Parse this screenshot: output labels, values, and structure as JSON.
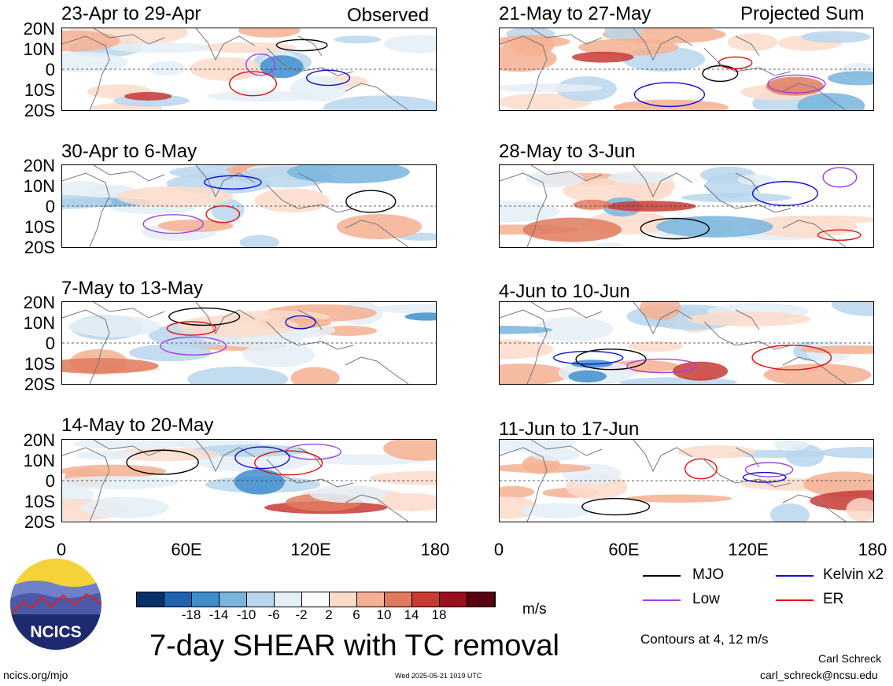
{
  "header": {
    "left_tag": "Observed",
    "right_tag": "Projected Sum"
  },
  "panels": [
    {
      "title": "23-Apr to 29-Apr"
    },
    {
      "title": "21-May to 27-May"
    },
    {
      "title": "30-Apr to 6-May"
    },
    {
      "title": "28-May to 3-Jun"
    },
    {
      "title": "7-May to 13-May"
    },
    {
      "title": "4-Jun to 10-Jun"
    },
    {
      "title": "14-May to 20-May"
    },
    {
      "title": "11-Jun to 17-Jun"
    }
  ],
  "axes": {
    "lat_labels": [
      "20N",
      "10N",
      "0",
      "10S",
      "20S"
    ],
    "lon_labels": [
      "0",
      "60E",
      "120E",
      "180"
    ]
  },
  "legend": {
    "mjo": {
      "label": "MJO",
      "color": "#000000"
    },
    "kelvin": {
      "label": "Kelvin x2",
      "color": "#1010d0"
    },
    "low": {
      "label": "Low",
      "color": "#a040e0"
    },
    "er": {
      "label": "ER",
      "color": "#e01010"
    }
  },
  "colorbar": {
    "ticks": [
      "-18",
      "-14",
      "-10",
      "-6",
      "-2",
      "2",
      "6",
      "10",
      "14",
      "18"
    ],
    "colors": [
      "#08306b",
      "#1f63b0",
      "#3f8ecc",
      "#78b4dc",
      "#b8d6ec",
      "#e4eff7",
      "#fbfbfb",
      "#fbdccb",
      "#f4b092",
      "#e07a5e",
      "#c83a34",
      "#98101e",
      "#5a0012"
    ],
    "units": "m/s"
  },
  "footer": {
    "title": "7-day SHEAR with TC removal",
    "contours_note": "Contours at 4, 12 m/s",
    "author": "Carl Schreck",
    "email": "carl_schreck@ncsu.edu",
    "site": "ncics.org/mjo",
    "timestamp": "Wed 2025-05-21 1019 UTC",
    "logo_text": "NCICS"
  }
}
